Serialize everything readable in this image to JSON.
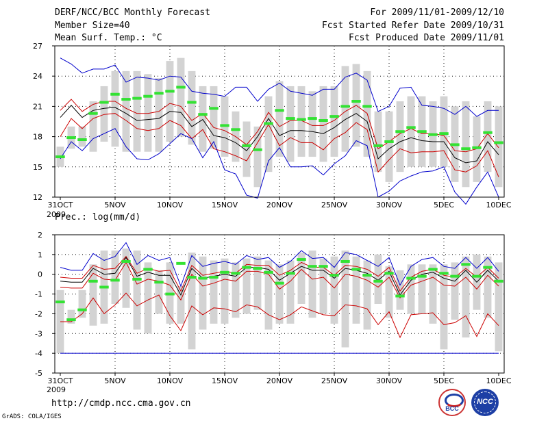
{
  "header": {
    "title": "DERF/NCC/BCC Monthly Forecast",
    "member_size": "Member Size=40",
    "variable": "Mean Surf. Temp.: °C",
    "period": "For 2009/11/01-2009/12/10",
    "start_date": "Fcst Started Refer Date 2009/10/31",
    "produced_date": "Fcst Produced Date 2009/11/01"
  },
  "footer": {
    "url": "http://cmdp.ncc.cma.gov.cn",
    "grads": "GrADS: COLA/IGES",
    "logo_left_text": "BCC",
    "logo_right_text": "NCC"
  },
  "colors": {
    "background": "#ffffff",
    "box": "#d3d3d3",
    "mean_bar": "#33e233",
    "outer_line": "#0000cc",
    "inner_line": "#cc0000",
    "median_line": "#000000"
  },
  "chart_data": [
    {
      "type": "box",
      "title": "Mean Surf. Temp.: °C",
      "ylim": [
        12,
        27
      ],
      "yticks": [
        12,
        15,
        18,
        21,
        24,
        27
      ],
      "x_ticks": [
        {
          "day": 0,
          "label": "31OCT"
        },
        {
          "day": 5,
          "label": "5NOV"
        },
        {
          "day": 10,
          "label": "10NOV"
        },
        {
          "day": 15,
          "label": "15NOV"
        },
        {
          "day": 20,
          "label": "20NOV"
        },
        {
          "day": 25,
          "label": "25NOV"
        },
        {
          "day": 30,
          "label": "30NOV"
        },
        {
          "day": 35,
          "label": "5DEC"
        },
        {
          "day": 40,
          "label": "10DEC"
        }
      ],
      "x_sublabel": "2009",
      "grid": true,
      "box_low": [
        15.0,
        16.8,
        17.0,
        16.5,
        17.5,
        17.0,
        16.5,
        16.5,
        16.5,
        16.5,
        17.5,
        18.0,
        17.2,
        16.5,
        16.8,
        16.0,
        15.5,
        14.0,
        13.0,
        14.5,
        16.0,
        15.5,
        16.0,
        16.0,
        15.5,
        16.0,
        16.5,
        17.0,
        16.0,
        14.5,
        13.5,
        14.5,
        15.0,
        15.0,
        15.0,
        15.0,
        13.5,
        13.0,
        13.5,
        14.5,
        13.0
      ],
      "box_high": [
        17.0,
        19.0,
        19.0,
        21.5,
        23.0,
        24.5,
        24.5,
        24.5,
        24.2,
        23.8,
        25.5,
        25.8,
        24.5,
        23.0,
        23.0,
        22.0,
        20.5,
        19.5,
        19.0,
        22.0,
        23.5,
        23.0,
        23.0,
        22.5,
        23.0,
        23.0,
        25.0,
        25.2,
        24.5,
        20.5,
        20.5,
        21.5,
        22.0,
        22.0,
        21.5,
        22.0,
        21.0,
        21.5,
        20.0,
        21.5,
        21.0
      ],
      "mean_bars": [
        16.0,
        17.9,
        17.7,
        20.3,
        21.4,
        22.2,
        21.7,
        21.8,
        22.0,
        22.3,
        22.5,
        22.9,
        21.4,
        20.2,
        20.8,
        19.1,
        18.7,
        17.1,
        16.7,
        19.3,
        20.6,
        19.8,
        19.7,
        19.8,
        19.6,
        20.0,
        21.0,
        21.5,
        21.0,
        17.1,
        17.5,
        18.5,
        18.9,
        18.5,
        18.2,
        18.3,
        17.2,
        16.8,
        16.9,
        18.4,
        17.4
      ],
      "series": [
        {
          "name": "max",
          "color": "#0000cc",
          "values": [
            25.8,
            25.2,
            24.3,
            24.7,
            24.7,
            25.1,
            23.4,
            23.9,
            23.8,
            23.6,
            24.0,
            23.9,
            22.5,
            22.3,
            22.2,
            22.0,
            22.9,
            22.9,
            21.5,
            22.7,
            23.3,
            22.5,
            22.3,
            22.1,
            22.7,
            22.7,
            23.9,
            24.3,
            23.6,
            20.5,
            21.0,
            22.8,
            22.9,
            21.1,
            21.0,
            20.8,
            20.2,
            21.0,
            20.0,
            20.6,
            20.6
          ]
        },
        {
          "name": "p75",
          "color": "#cc0000",
          "values": [
            20.6,
            21.7,
            20.5,
            21.2,
            21.5,
            21.5,
            20.8,
            20.3,
            20.3,
            20.5,
            21.3,
            21.0,
            19.6,
            20.3,
            18.9,
            18.6,
            18.0,
            17.2,
            18.5,
            20.4,
            19.0,
            19.6,
            19.6,
            19.1,
            19.1,
            19.6,
            20.5,
            21.1,
            20.3,
            16.8,
            17.5,
            18.3,
            18.8,
            18.3,
            18.3,
            18.1,
            16.6,
            16.5,
            16.8,
            18.3,
            16.9
          ]
        },
        {
          "name": "median",
          "color": "#000000",
          "values": [
            19.9,
            21.1,
            19.9,
            20.6,
            20.8,
            20.9,
            20.3,
            19.6,
            19.7,
            19.8,
            20.5,
            20.4,
            19.0,
            19.7,
            18.1,
            17.9,
            17.4,
            16.6,
            18.0,
            19.8,
            18.1,
            18.6,
            18.6,
            18.5,
            18.3,
            18.9,
            19.7,
            20.3,
            19.5,
            15.8,
            16.8,
            17.5,
            17.9,
            17.6,
            17.5,
            17.5,
            15.9,
            15.4,
            15.6,
            17.5,
            16.2
          ]
        },
        {
          "name": "p25",
          "color": "#cc0000",
          "values": [
            18.0,
            19.8,
            18.8,
            19.8,
            20.2,
            20.3,
            19.6,
            18.8,
            18.6,
            18.8,
            19.6,
            19.1,
            17.8,
            18.7,
            16.8,
            16.5,
            16.1,
            15.6,
            17.4,
            19.2,
            17.1,
            17.9,
            17.4,
            17.4,
            16.7,
            17.8,
            18.4,
            19.4,
            18.7,
            14.5,
            15.7,
            16.8,
            16.4,
            16.5,
            16.5,
            16.6,
            14.7,
            14.5,
            15.1,
            16.6,
            14.0
          ]
        },
        {
          "name": "min",
          "color": "#0000cc",
          "values": [
            15.8,
            17.5,
            16.6,
            17.8,
            18.3,
            18.8,
            17.0,
            15.8,
            15.7,
            16.3,
            17.3,
            18.3,
            17.8,
            15.9,
            17.5,
            14.7,
            14.3,
            12.2,
            11.9,
            15.6,
            16.9,
            15.0,
            15.0,
            15.1,
            14.2,
            15.3,
            16.1,
            17.6,
            17.1,
            12.0,
            12.6,
            13.6,
            14.1,
            14.5,
            14.6,
            15.0,
            12.5,
            11.3,
            13.0,
            14.5,
            12.0
          ]
        }
      ]
    },
    {
      "type": "box",
      "title": "Prec.: log(mm/d)",
      "ylim": [
        -5,
        2
      ],
      "yticks": [
        -5,
        -4,
        -3,
        -2,
        -1,
        0,
        1,
        2
      ],
      "x_ticks": [
        {
          "day": 0,
          "label": "31OCT"
        },
        {
          "day": 5,
          "label": "5NOV"
        },
        {
          "day": 10,
          "label": "10NOV"
        },
        {
          "day": 15,
          "label": "15NOV"
        },
        {
          "day": 20,
          "label": "20NOV"
        },
        {
          "day": 25,
          "label": "25NOV"
        },
        {
          "day": 30,
          "label": "30NOV"
        },
        {
          "day": 35,
          "label": "5DEC"
        },
        {
          "day": 40,
          "label": "10DEC"
        }
      ],
      "x_sublabel": "2009",
      "grid": true,
      "box_low": [
        -4.0,
        -2.5,
        -2.2,
        -2.6,
        -2.5,
        -1.5,
        -1.7,
        -2.8,
        -3.0,
        -2.0,
        -2.5,
        -2.5,
        -3.8,
        -2.8,
        -2.5,
        -2.5,
        -2.2,
        -2.0,
        -1.8,
        -2.8,
        -2.5,
        -2.5,
        -1.5,
        -2.2,
        -2.0,
        -2.5,
        -3.7,
        -2.5,
        -2.8,
        -1.5,
        -2.2,
        -1.8,
        -2.0,
        -2.0,
        -2.5,
        -3.8,
        -2.3,
        -3.2,
        -1.8,
        -2.2,
        -3.9
      ],
      "box_high": [
        -0.8,
        -1.8,
        -0.8,
        0.5,
        1.2,
        1.2,
        1.3,
        1.2,
        0.6,
        0.2,
        0.6,
        -0.6,
        1.1,
        0.9,
        0.7,
        0.8,
        0.6,
        0.8,
        0.9,
        0.7,
        0.5,
        0.7,
        1.1,
        1.2,
        0.8,
        0.9,
        1.2,
        0.9,
        0.7,
        1.0,
        0.4,
        0.2,
        0.5,
        0.5,
        0.5,
        0.5,
        0.6,
        0.9,
        1.0,
        0.9,
        0.6
      ],
      "mean_bars": [
        -1.4,
        -2.3,
        -1.8,
        -0.35,
        -0.65,
        -0.3,
        0.65,
        -0.25,
        0.25,
        -0.4,
        -1.0,
        0.55,
        -0.15,
        -0.2,
        -0.15,
        0.1,
        0.05,
        0.35,
        0.3,
        0.1,
        -0.45,
        0.05,
        0.75,
        0.4,
        0.4,
        -0.05,
        0.65,
        0.25,
        -0.05,
        -0.35,
        0.05,
        -1.1,
        -0.2,
        -0.1,
        0.25,
        0.05,
        -0.1,
        0.5,
        -0.1,
        0.35,
        -0.35
      ],
      "series": [
        {
          "name": "max",
          "color": "#0000cc",
          "values": [
            0.35,
            0.2,
            0.2,
            1.05,
            0.7,
            0.9,
            1.6,
            0.5,
            0.95,
            0.7,
            0.85,
            -0.6,
            0.95,
            0.4,
            0.55,
            0.65,
            0.5,
            0.95,
            0.75,
            0.85,
            0.35,
            0.65,
            1.2,
            0.8,
            0.85,
            0.35,
            1.1,
            1.0,
            0.7,
            0.4,
            0.85,
            -0.55,
            0.4,
            0.75,
            0.85,
            0.4,
            0.3,
            0.85,
            0.3,
            0.85,
            0.15
          ]
        },
        {
          "name": "p75",
          "color": "#cc0000",
          "values": [
            -0.15,
            -0.2,
            -0.2,
            0.45,
            0.25,
            0.3,
            0.9,
            0.05,
            0.3,
            0.15,
            0.2,
            -0.85,
            0.45,
            -0.05,
            0.05,
            0.15,
            0.05,
            0.5,
            0.45,
            0.45,
            -0.05,
            0.2,
            0.6,
            0.35,
            0.35,
            -0.05,
            0.45,
            0.4,
            0.25,
            -0.1,
            0.35,
            -0.85,
            -0.15,
            0.15,
            0.25,
            -0.05,
            -0.15,
            0.3,
            -0.15,
            0.35,
            -0.2
          ]
        },
        {
          "name": "median",
          "color": "#000000",
          "values": [
            -0.35,
            -0.4,
            -0.4,
            0.3,
            0.0,
            0.05,
            0.85,
            -0.1,
            0.1,
            -0.05,
            -0.05,
            -1.05,
            0.3,
            -0.2,
            -0.1,
            0.0,
            -0.1,
            0.35,
            0.35,
            0.25,
            -0.3,
            0.05,
            0.4,
            0.2,
            0.2,
            -0.2,
            0.3,
            0.2,
            0.05,
            -0.3,
            0.15,
            -1.05,
            -0.3,
            0.0,
            0.1,
            -0.2,
            -0.35,
            0.2,
            -0.4,
            0.2,
            -0.35
          ]
        },
        {
          "name": "p25",
          "color": "#cc0000",
          "values": [
            -0.65,
            -0.7,
            -0.7,
            0.05,
            -0.25,
            -0.3,
            0.6,
            -0.5,
            -0.25,
            -0.35,
            -0.55,
            -1.3,
            0.0,
            -0.6,
            -0.45,
            -0.25,
            -0.35,
            0.15,
            0.15,
            0.0,
            -0.75,
            -0.35,
            0.25,
            -0.25,
            -0.15,
            -0.7,
            0.0,
            -0.1,
            -0.3,
            -0.65,
            -0.15,
            -1.2,
            -0.55,
            -0.35,
            -0.15,
            -0.55,
            -0.6,
            -0.15,
            -0.75,
            -0.05,
            -0.6
          ]
        },
        {
          "name": "p10",
          "color": "#cc0000",
          "values": [
            -2.4,
            -2.4,
            -2.0,
            -1.2,
            -2.0,
            -1.55,
            -0.95,
            -1.6,
            -1.3,
            -1.05,
            -2.1,
            -2.85,
            -1.6,
            -2.05,
            -1.7,
            -1.75,
            -1.9,
            -1.55,
            -1.65,
            -2.05,
            -2.3,
            -2.05,
            -1.65,
            -1.85,
            -2.05,
            -2.1,
            -1.55,
            -1.6,
            -1.75,
            -2.55,
            -1.9,
            -3.2,
            -2.05,
            -2.0,
            -1.95,
            -2.55,
            -2.45,
            -2.1,
            -3.15,
            -2.0,
            -2.6
          ]
        },
        {
          "name": "min",
          "color": "#0000cc",
          "values": [
            -4.0,
            -4.0,
            -4.0,
            -4.0,
            -4.0,
            -4.0,
            -4.0,
            -4.0,
            -4.0,
            -4.0,
            -4.0,
            -4.0,
            -4.0,
            -4.0,
            -4.0,
            -4.0,
            -4.0,
            -4.0,
            -4.0,
            -4.0,
            -4.0,
            -4.0,
            -4.0,
            -4.0,
            -4.0,
            -4.0,
            -4.0,
            -4.0,
            -4.0,
            -4.0,
            -4.0,
            -4.0,
            -4.0,
            -4.0,
            -4.0,
            -4.0,
            -4.0,
            -4.0,
            -4.0,
            -4.0,
            -4.0
          ]
        }
      ]
    }
  ]
}
